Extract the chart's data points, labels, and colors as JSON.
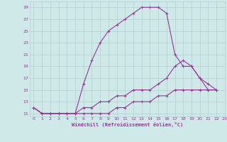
{
  "title": "",
  "xlabel": "Windchill (Refroidissement éolien,°C)",
  "xlim": [
    -0.5,
    23
  ],
  "ylim": [
    10.5,
    30
  ],
  "yticks": [
    11,
    13,
    15,
    17,
    19,
    21,
    23,
    25,
    27,
    29
  ],
  "xticks": [
    0,
    1,
    2,
    3,
    4,
    5,
    6,
    7,
    8,
    9,
    10,
    11,
    12,
    13,
    14,
    15,
    16,
    17,
    18,
    19,
    20,
    21,
    22,
    23
  ],
  "background_color": "#cfe8e8",
  "grid_color": "#b0d0d0",
  "line_color": "#993399",
  "line1_y": [
    12,
    11,
    11,
    11,
    11,
    11,
    16,
    20,
    23,
    25,
    26,
    27,
    28,
    29,
    29,
    29,
    28,
    21,
    19,
    19,
    17,
    15,
    15,
    null
  ],
  "line2_y": [
    12,
    11,
    11,
    11,
    11,
    11,
    11,
    11,
    11,
    11,
    12,
    12,
    13,
    13,
    13,
    14,
    14,
    15,
    15,
    15,
    15,
    15,
    15,
    null
  ],
  "line3_y": [
    12,
    11,
    11,
    11,
    11,
    11,
    12,
    12,
    13,
    13,
    14,
    14,
    15,
    15,
    15,
    16,
    17,
    19,
    20,
    19,
    17,
    16,
    15,
    null
  ]
}
